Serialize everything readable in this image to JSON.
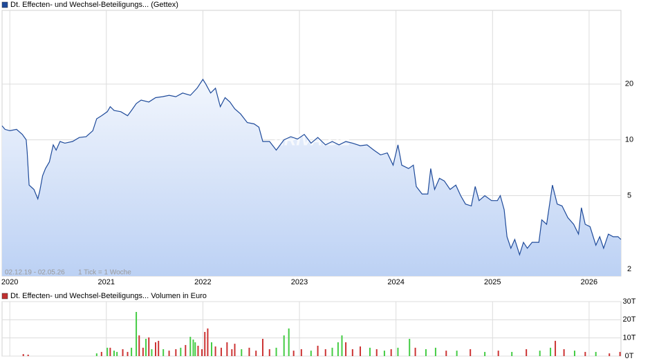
{
  "chart_data": [
    {
      "type": "line",
      "title": "Dt. Effecten- und Wechsel-Beteiligungs... (Gettex)",
      "color": "#1e4a9a",
      "range_note": "02.12.19 - 02.05.26",
      "tick_note": "1 Tick = 1 Woche",
      "watermark": "ARIVA.DE",
      "log_scale": true,
      "grid": true,
      "xlim": [
        2019.92,
        2026.33
      ],
      "xticks": [
        2020,
        2021,
        2022,
        2023,
        2024,
        2025,
        2026
      ],
      "ylim": [
        1.84,
        50
      ],
      "yticks": [
        2,
        5,
        10,
        20
      ],
      "x": [
        2019.92,
        2019.95,
        2020.0,
        2020.07,
        2020.13,
        2020.17,
        2020.18,
        2020.2,
        2020.25,
        2020.29,
        2020.31,
        2020.34,
        2020.37,
        2020.41,
        2020.45,
        2020.48,
        2020.52,
        2020.57,
        2020.65,
        2020.72,
        2020.79,
        2020.86,
        2020.9,
        2020.95,
        2021.01,
        2021.04,
        2021.08,
        2021.15,
        2021.22,
        2021.26,
        2021.31,
        2021.36,
        2021.44,
        2021.51,
        2021.58,
        2021.65,
        2021.72,
        2021.79,
        2021.87,
        2021.94,
        2022.0,
        2022.03,
        2022.08,
        2022.13,
        2022.18,
        2022.23,
        2022.28,
        2022.33,
        2022.39,
        2022.46,
        2022.53,
        2022.58,
        2022.62,
        2022.69,
        2022.76,
        2022.84,
        2022.91,
        2022.98,
        2023.05,
        2023.12,
        2023.19,
        2023.27,
        2023.34,
        2023.41,
        2023.48,
        2023.55,
        2023.63,
        2023.7,
        2023.77,
        2023.84,
        2023.91,
        2023.97,
        2024.02,
        2024.06,
        2024.13,
        2024.18,
        2024.21,
        2024.27,
        2024.33,
        2024.36,
        2024.4,
        2024.45,
        2024.5,
        2024.56,
        2024.62,
        2024.67,
        2024.72,
        2024.78,
        2024.82,
        2024.86,
        2024.92,
        2024.99,
        2025.05,
        2025.08,
        2025.12,
        2025.15,
        2025.19,
        2025.23,
        2025.28,
        2025.32,
        2025.36,
        2025.41,
        2025.48,
        2025.51,
        2025.56,
        2025.62,
        2025.67,
        2025.72,
        2025.78,
        2025.84,
        2025.89,
        2025.92,
        2025.96,
        2026.01,
        2026.07,
        2026.11,
        2026.15,
        2026.2,
        2026.25,
        2026.3,
        2026.33
      ],
      "values": [
        11.9,
        11.4,
        11.2,
        11.4,
        10.7,
        10.0,
        8.6,
        5.7,
        5.4,
        4.8,
        5.3,
        6.4,
        7.0,
        7.6,
        9.4,
        8.8,
        9.8,
        9.6,
        9.8,
        10.3,
        10.4,
        11.2,
        13.0,
        13.5,
        14.2,
        15.1,
        14.4,
        14.2,
        13.5,
        14.4,
        15.7,
        16.4,
        16.0,
        16.9,
        17.1,
        17.4,
        17.1,
        17.9,
        17.4,
        19.0,
        21.2,
        20.0,
        17.9,
        19.0,
        15.1,
        16.9,
        16.0,
        14.7,
        13.8,
        12.4,
        12.2,
        11.7,
        9.8,
        9.8,
        8.8,
        10.0,
        10.4,
        10.1,
        10.7,
        9.6,
        10.3,
        9.4,
        9.8,
        9.4,
        9.8,
        9.6,
        9.3,
        9.4,
        8.8,
        8.3,
        8.5,
        7.3,
        9.4,
        7.3,
        7.0,
        7.3,
        5.6,
        5.1,
        5.1,
        7.0,
        5.4,
        6.2,
        6.0,
        5.4,
        5.7,
        5.0,
        4.5,
        4.4,
        5.6,
        4.7,
        5.0,
        4.7,
        4.7,
        5.0,
        4.2,
        3.0,
        2.6,
        2.9,
        2.4,
        2.8,
        2.6,
        2.8,
        2.8,
        3.7,
        3.5,
        5.7,
        4.5,
        4.4,
        3.8,
        3.5,
        3.1,
        4.3,
        3.5,
        3.4,
        2.7,
        3.0,
        2.6,
        3.1,
        3.0,
        3.0,
        2.9
      ]
    },
    {
      "type": "bar",
      "title": "Dt. Effecten- und Wechsel-Beteiligungs... Volumen in Euro",
      "color": "#c03030",
      "grid": true,
      "xlim": [
        2019.92,
        2026.33
      ],
      "ylim": [
        0,
        30000
      ],
      "yticks": [
        {
          "value": 0,
          "label": "0T"
        },
        {
          "value": 10000,
          "label": "10T"
        },
        {
          "value": 20000,
          "label": "20T"
        },
        {
          "value": 30000,
          "label": "30T"
        }
      ],
      "x": [
        2020.14,
        2020.19,
        2020.9,
        2020.95,
        2021.01,
        2021.04,
        2021.08,
        2021.11,
        2021.17,
        2021.22,
        2021.26,
        2021.31,
        2021.34,
        2021.38,
        2021.41,
        2021.44,
        2021.47,
        2021.51,
        2021.54,
        2021.59,
        2021.65,
        2021.72,
        2021.77,
        2021.82,
        2021.87,
        2021.9,
        2021.92,
        2021.95,
        2021.99,
        2022.02,
        2022.05,
        2022.09,
        2022.13,
        2022.19,
        2022.25,
        2022.3,
        2022.33,
        2022.4,
        2022.48,
        2022.55,
        2022.62,
        2022.69,
        2022.76,
        2022.84,
        2022.89,
        2022.94,
        2023.02,
        2023.12,
        2023.19,
        2023.27,
        2023.34,
        2023.4,
        2023.44,
        2023.48,
        2023.55,
        2023.63,
        2023.73,
        2023.8,
        2023.88,
        2023.95,
        2024.02,
        2024.14,
        2024.2,
        2024.31,
        2024.41,
        2024.52,
        2024.63,
        2024.77,
        2024.92,
        2025.06,
        2025.2,
        2025.35,
        2025.49,
        2025.6,
        2025.65,
        2025.74,
        2025.85,
        2025.96,
        2026.07,
        2026.21,
        2026.32
      ],
      "values": [
        1100,
        800,
        1500,
        2300,
        4600,
        4600,
        3000,
        2300,
        3800,
        2300,
        4600,
        24300,
        11400,
        4600,
        9500,
        10300,
        3800,
        7600,
        8400,
        3800,
        3000,
        3800,
        4600,
        6100,
        10600,
        9100,
        7600,
        5700,
        3800,
        13300,
        15200,
        7600,
        5300,
        4600,
        7600,
        3800,
        6800,
        3800,
        4600,
        3000,
        9500,
        3800,
        4600,
        11400,
        15200,
        3000,
        3800,
        3000,
        5700,
        3800,
        4600,
        7600,
        11400,
        7600,
        3800,
        5300,
        4600,
        3800,
        3000,
        3800,
        4600,
        9500,
        4600,
        3800,
        4600,
        3000,
        3000,
        3800,
        2300,
        3000,
        2300,
        3800,
        3000,
        4600,
        8400,
        3800,
        3000,
        2300,
        2300,
        1500,
        2300
      ],
      "colors": [
        "#c33",
        "#c33",
        "#4c4",
        "#c33",
        "#4c4",
        "#c33",
        "#4c4",
        "#4c4",
        "#c33",
        "#c33",
        "#4c4",
        "#4c4",
        "#c33",
        "#c33",
        "#4c4",
        "#c33",
        "#4c4",
        "#c33",
        "#c33",
        "#4c4",
        "#c33",
        "#c33",
        "#4c4",
        "#c33",
        "#4c4",
        "#4c4",
        "#4c4",
        "#c33",
        "#c33",
        "#c33",
        "#c33",
        "#4c4",
        "#c33",
        "#c33",
        "#c33",
        "#c33",
        "#c33",
        "#4c4",
        "#c33",
        "#c33",
        "#c33",
        "#c33",
        "#4c4",
        "#4c4",
        "#4c4",
        "#c33",
        "#c33",
        "#4c4",
        "#c33",
        "#c33",
        "#4c4",
        "#4c4",
        "#4c4",
        "#c33",
        "#c33",
        "#c33",
        "#4c4",
        "#c33",
        "#4c4",
        "#c33",
        "#4c4",
        "#4c4",
        "#c33",
        "#4c4",
        "#4c4",
        "#c33",
        "#4c4",
        "#c33",
        "#4c4",
        "#c33",
        "#4c4",
        "#c33",
        "#4c4",
        "#4c4",
        "#c33",
        "#c33",
        "#4c4",
        "#c33",
        "#4c4",
        "#c33",
        "#c33"
      ]
    }
  ]
}
